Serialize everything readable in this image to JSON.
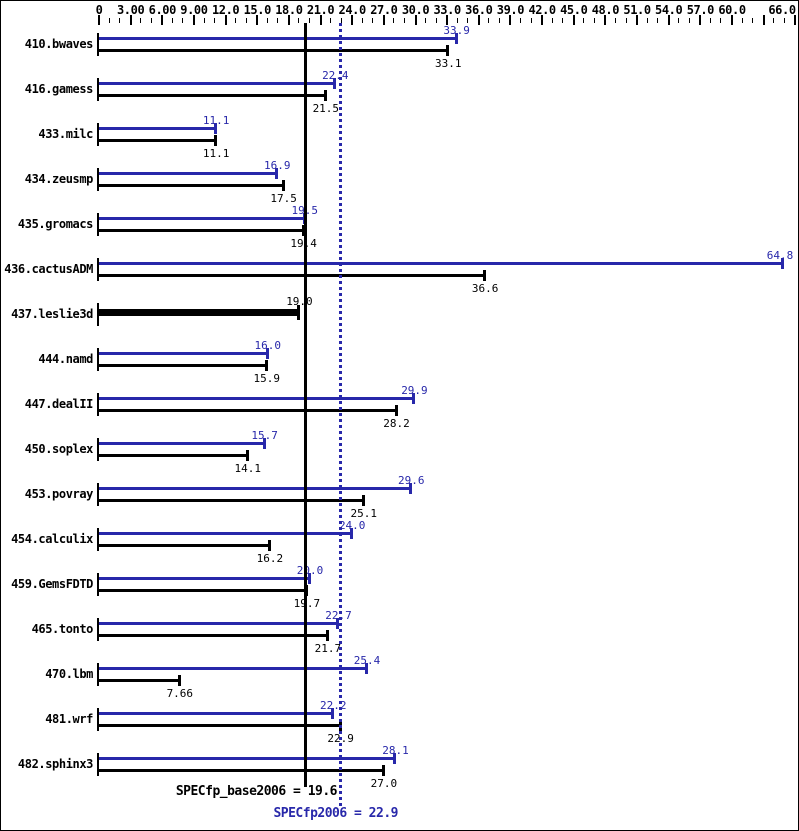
{
  "colors": {
    "peak_blue": "#2828aa",
    "base_black": "#000000",
    "background": "#ffffff",
    "border": "#000000"
  },
  "chart_data": {
    "type": "bar",
    "orientation": "horizontal",
    "title": "",
    "x_axis": {
      "min": 0,
      "max": 66,
      "major_tick_interval": 3,
      "minor_tick_interval": 1,
      "grid": false,
      "tick_labels": [
        {
          "value": 0,
          "text": "0"
        },
        {
          "value": 3,
          "text": "3.00"
        },
        {
          "value": 6,
          "text": "6.00"
        },
        {
          "value": 9,
          "text": "9.00"
        },
        {
          "value": 12,
          "text": "12.0"
        },
        {
          "value": 15,
          "text": "15.0"
        },
        {
          "value": 18,
          "text": "18.0"
        },
        {
          "value": 21,
          "text": "21.0"
        },
        {
          "value": 24,
          "text": "24.0"
        },
        {
          "value": 27,
          "text": "27.0"
        },
        {
          "value": 30,
          "text": "30.0"
        },
        {
          "value": 33,
          "text": "33.0"
        },
        {
          "value": 36,
          "text": "36.0"
        },
        {
          "value": 39,
          "text": "39.0"
        },
        {
          "value": 42,
          "text": "42.0"
        },
        {
          "value": 45,
          "text": "45.0"
        },
        {
          "value": 48,
          "text": "48.0"
        },
        {
          "value": 51,
          "text": "51.0"
        },
        {
          "value": 54,
          "text": "54.0"
        },
        {
          "value": 57,
          "text": "57.0"
        },
        {
          "value": 60,
          "text": "60.0"
        },
        {
          "value": 66,
          "text": "66.0"
        }
      ]
    },
    "series": [
      {
        "name": "peak",
        "color": "#2828aa"
      },
      {
        "name": "base",
        "color": "#000000"
      }
    ],
    "benchmarks": [
      {
        "name": "410.bwaves",
        "peak": 33.9,
        "peak_text": "33.9",
        "base": 33.1,
        "base_text": "33.1",
        "style": "normal"
      },
      {
        "name": "416.gamess",
        "peak": 22.4,
        "peak_text": "22.4",
        "base": 21.5,
        "base_text": "21.5",
        "style": "normal"
      },
      {
        "name": "433.milc",
        "peak": 11.1,
        "peak_text": "11.1",
        "base": 11.1,
        "base_text": "11.1",
        "style": "normal"
      },
      {
        "name": "434.zeusmp",
        "peak": 16.9,
        "peak_text": "16.9",
        "base": 17.5,
        "base_text": "17.5",
        "style": "normal"
      },
      {
        "name": "435.gromacs",
        "peak": 19.5,
        "peak_text": "19.5",
        "base": 19.4,
        "base_text": "19.4",
        "style": "normal"
      },
      {
        "name": "436.cactusADM",
        "peak": 64.8,
        "peak_text": "64.8",
        "base": 36.6,
        "base_text": "36.6",
        "style": "normal"
      },
      {
        "name": "437.leslie3d",
        "base": 19.0,
        "base_text": "19.0",
        "style": "base-only"
      },
      {
        "name": "444.namd",
        "peak": 16.0,
        "peak_text": "16.0",
        "base": 15.9,
        "base_text": "15.9",
        "style": "normal"
      },
      {
        "name": "447.dealII",
        "peak": 29.9,
        "peak_text": "29.9",
        "base": 28.2,
        "base_text": "28.2",
        "style": "normal"
      },
      {
        "name": "450.soplex",
        "peak": 15.7,
        "peak_text": "15.7",
        "base": 14.1,
        "base_text": "14.1",
        "style": "normal"
      },
      {
        "name": "453.povray",
        "peak": 29.6,
        "peak_text": "29.6",
        "base": 25.1,
        "base_text": "25.1",
        "style": "normal"
      },
      {
        "name": "454.calculix",
        "peak": 24.0,
        "peak_text": "24.0",
        "base": 16.2,
        "base_text": "16.2",
        "style": "normal"
      },
      {
        "name": "459.GemsFDTD",
        "peak": 20.0,
        "peak_text": "20.0",
        "base": 19.7,
        "base_text": "19.7",
        "style": "normal"
      },
      {
        "name": "465.tonto",
        "peak": 22.7,
        "peak_text": "22.7",
        "base": 21.7,
        "base_text": "21.7",
        "style": "normal"
      },
      {
        "name": "470.lbm",
        "peak": 25.4,
        "peak_text": "25.4",
        "base": 7.66,
        "base_text": "7.66",
        "style": "normal"
      },
      {
        "name": "481.wrf",
        "peak": 22.2,
        "peak_text": "22.2",
        "base": 22.9,
        "base_text": "22.9",
        "style": "normal"
      },
      {
        "name": "482.sphinx3",
        "peak": 28.1,
        "peak_text": "28.1",
        "base": 27.0,
        "base_text": "27.0",
        "style": "normal"
      }
    ],
    "means": {
      "base": {
        "metric": "SPECfp_base2006",
        "value": 19.6,
        "text": "SPECfp_base2006 = 19.6"
      },
      "peak": {
        "metric": "SPECfp2006",
        "value": 22.9,
        "text": "SPECfp2006 = 22.9"
      }
    }
  }
}
